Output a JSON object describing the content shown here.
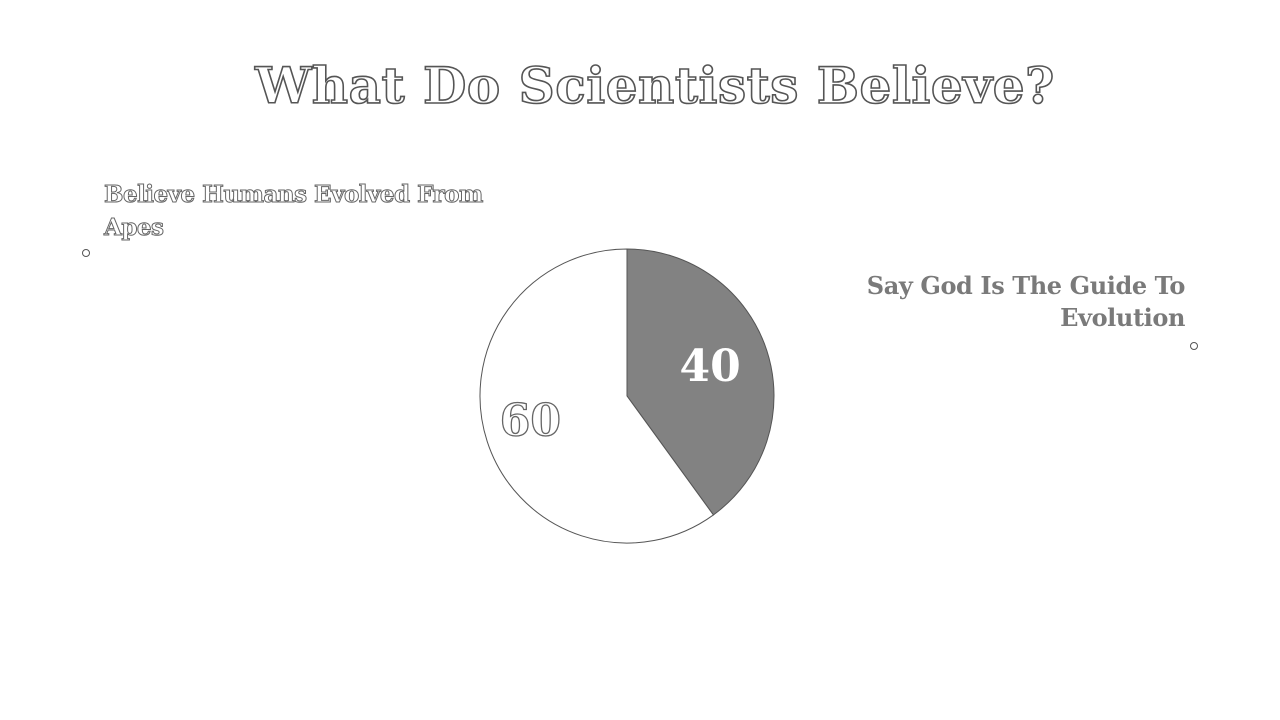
{
  "slide": {
    "title": "What Do Scientists Believe?"
  },
  "legend": {
    "left_label": "Believe Humans Evolved From Apes",
    "right_label": "Say God Is The Guide To Evolution"
  },
  "colors": {
    "slice_dark": "#828282",
    "slice_light": "#ffffff",
    "outline": "#555555"
  },
  "chart_data": {
    "type": "pie",
    "slices": [
      {
        "label": "Say God Is The Guide To Evolution",
        "value": 40,
        "data_label": "40"
      },
      {
        "label": "Believe Humans Evolved From Apes",
        "value": 60,
        "data_label": "60"
      }
    ]
  }
}
